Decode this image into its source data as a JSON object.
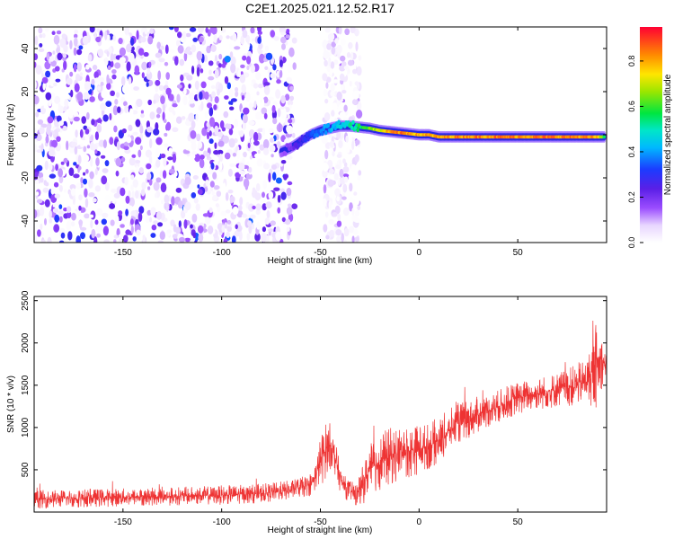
{
  "figure_title": "C2E1.2025.021.12.52.R17",
  "chart_data": [
    {
      "type": "heatmap",
      "xlabel": "Height of straight line (km)",
      "ylabel": "Frequency (Hz)",
      "xlim": [
        -195,
        95
      ],
      "ylim": [
        -50,
        50
      ],
      "x_ticks": [
        -150,
        -100,
        -50,
        0,
        50
      ],
      "y_ticks": [
        -40,
        -20,
        0,
        20,
        40
      ],
      "colorbar": {
        "label": "Normalized spectral amplitude",
        "range": [
          0,
          0.95
        ],
        "ticks": [
          0.0,
          0.2,
          0.4,
          0.6,
          0.8
        ]
      },
      "regions": [
        {
          "name": "noise",
          "x_range": [
            -195,
            -63
          ],
          "freq_range": [
            -50,
            50
          ],
          "amplitude": 0.12
        },
        {
          "name": "noise-patch",
          "x_range": [
            -48,
            -30
          ],
          "freq_range": [
            -50,
            50
          ],
          "amplitude": 0.05
        }
      ],
      "ridge": {
        "x": [
          -70,
          -65,
          -60,
          -55,
          -50,
          -45,
          -40,
          -35,
          -30,
          -25,
          -20,
          -15,
          -10,
          -5,
          0,
          5,
          10,
          20,
          30,
          40,
          50,
          60,
          70,
          80,
          90,
          94
        ],
        "freq": [
          -8,
          -6,
          -3,
          0,
          2,
          3,
          4,
          4,
          3.5,
          3,
          2,
          1.5,
          1,
          0.5,
          0,
          0,
          -1,
          -1,
          -1,
          -1,
          -1,
          -1,
          -1,
          -1,
          -1,
          -1
        ],
        "amplitude": [
          0.15,
          0.2,
          0.3,
          0.35,
          0.4,
          0.45,
          0.5,
          0.55,
          0.6,
          0.7,
          0.75,
          0.85,
          0.9,
          0.9,
          0.85,
          0.85,
          0.85,
          0.9,
          0.9,
          0.9,
          0.9,
          0.9,
          0.9,
          0.9,
          0.85,
          0.6
        ]
      }
    },
    {
      "type": "line",
      "xlabel": "Height of straight line (km)",
      "ylabel": "SNR (10 * v/v)",
      "xlim": [
        -195,
        95
      ],
      "ylim": [
        0,
        2550
      ],
      "x_ticks": [
        -150,
        -100,
        -50,
        0,
        50
      ],
      "y_ticks": [
        500,
        1000,
        1500,
        2000,
        2500
      ],
      "color": "#ee3333",
      "series": [
        {
          "x": [
            -195,
            -180,
            -160,
            -140,
            -120,
            -100,
            -80,
            -65,
            -55,
            -52,
            -50,
            -48,
            -46,
            -44,
            -42,
            -40,
            -38,
            -35,
            -32,
            -30,
            -28,
            -25,
            -20,
            -15,
            -10,
            -5,
            0,
            5,
            10,
            15,
            20,
            25,
            30,
            40,
            50,
            60,
            70,
            80,
            85,
            88,
            90,
            92,
            94
          ],
          "y": [
            150,
            160,
            170,
            180,
            190,
            200,
            220,
            260,
            320,
            450,
            600,
            700,
            800,
            750,
            600,
            400,
            300,
            250,
            200,
            250,
            350,
            500,
            600,
            650,
            700,
            720,
            750,
            780,
            850,
            950,
            1050,
            1100,
            1150,
            1250,
            1350,
            1400,
            1450,
            1500,
            1550,
            1650,
            1700,
            1800,
            1750
          ],
          "noise_amplitude": [
            110,
            110,
            110,
            110,
            110,
            115,
            115,
            120,
            130,
            200,
            300,
            350,
            300,
            250,
            200,
            160,
            140,
            130,
            130,
            180,
            250,
            300,
            350,
            350,
            350,
            330,
            300,
            280,
            280,
            260,
            250,
            230,
            220,
            200,
            200,
            200,
            220,
            250,
            300,
            400,
            500,
            400,
            150
          ]
        }
      ]
    }
  ]
}
